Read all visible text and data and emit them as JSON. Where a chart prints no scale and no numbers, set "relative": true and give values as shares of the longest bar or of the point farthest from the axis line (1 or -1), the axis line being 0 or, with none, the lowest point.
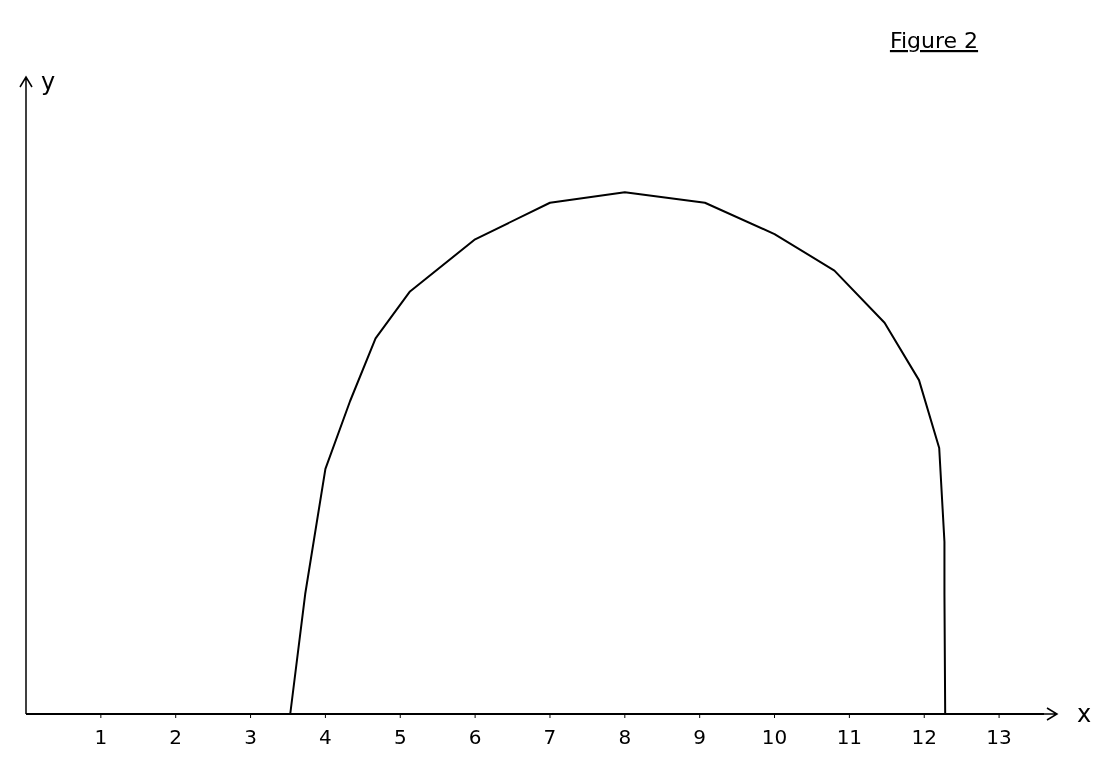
{
  "chart_data": {
    "type": "line",
    "title": "Figure 2",
    "xlabel": "x",
    "ylabel": "y",
    "relative": true,
    "x": [
      0,
      3.53,
      3.73,
      4.0,
      4.33,
      4.67,
      5.13,
      6.0,
      7.0,
      8.0,
      9.07,
      10.0,
      10.8,
      11.47,
      11.93,
      12.2,
      12.27,
      12.27,
      12.28,
      13.6
    ],
    "series": [
      {
        "color": "#000000",
        "values": [
          0,
          0,
          0.23,
          0.47,
          0.6,
          0.72,
          0.81,
          0.91,
          0.98,
          1,
          0.98,
          0.92,
          0.85,
          0.75,
          0.64,
          0.51,
          0.33,
          0.23,
          0,
          0
        ]
      }
    ],
    "xlim": [
      0,
      13.6
    ],
    "xticks": [
      1,
      2,
      3,
      4,
      5,
      6,
      7,
      8,
      9,
      10,
      11,
      12,
      13
    ],
    "grid": false,
    "marker": "none",
    "line_style": "solid"
  }
}
